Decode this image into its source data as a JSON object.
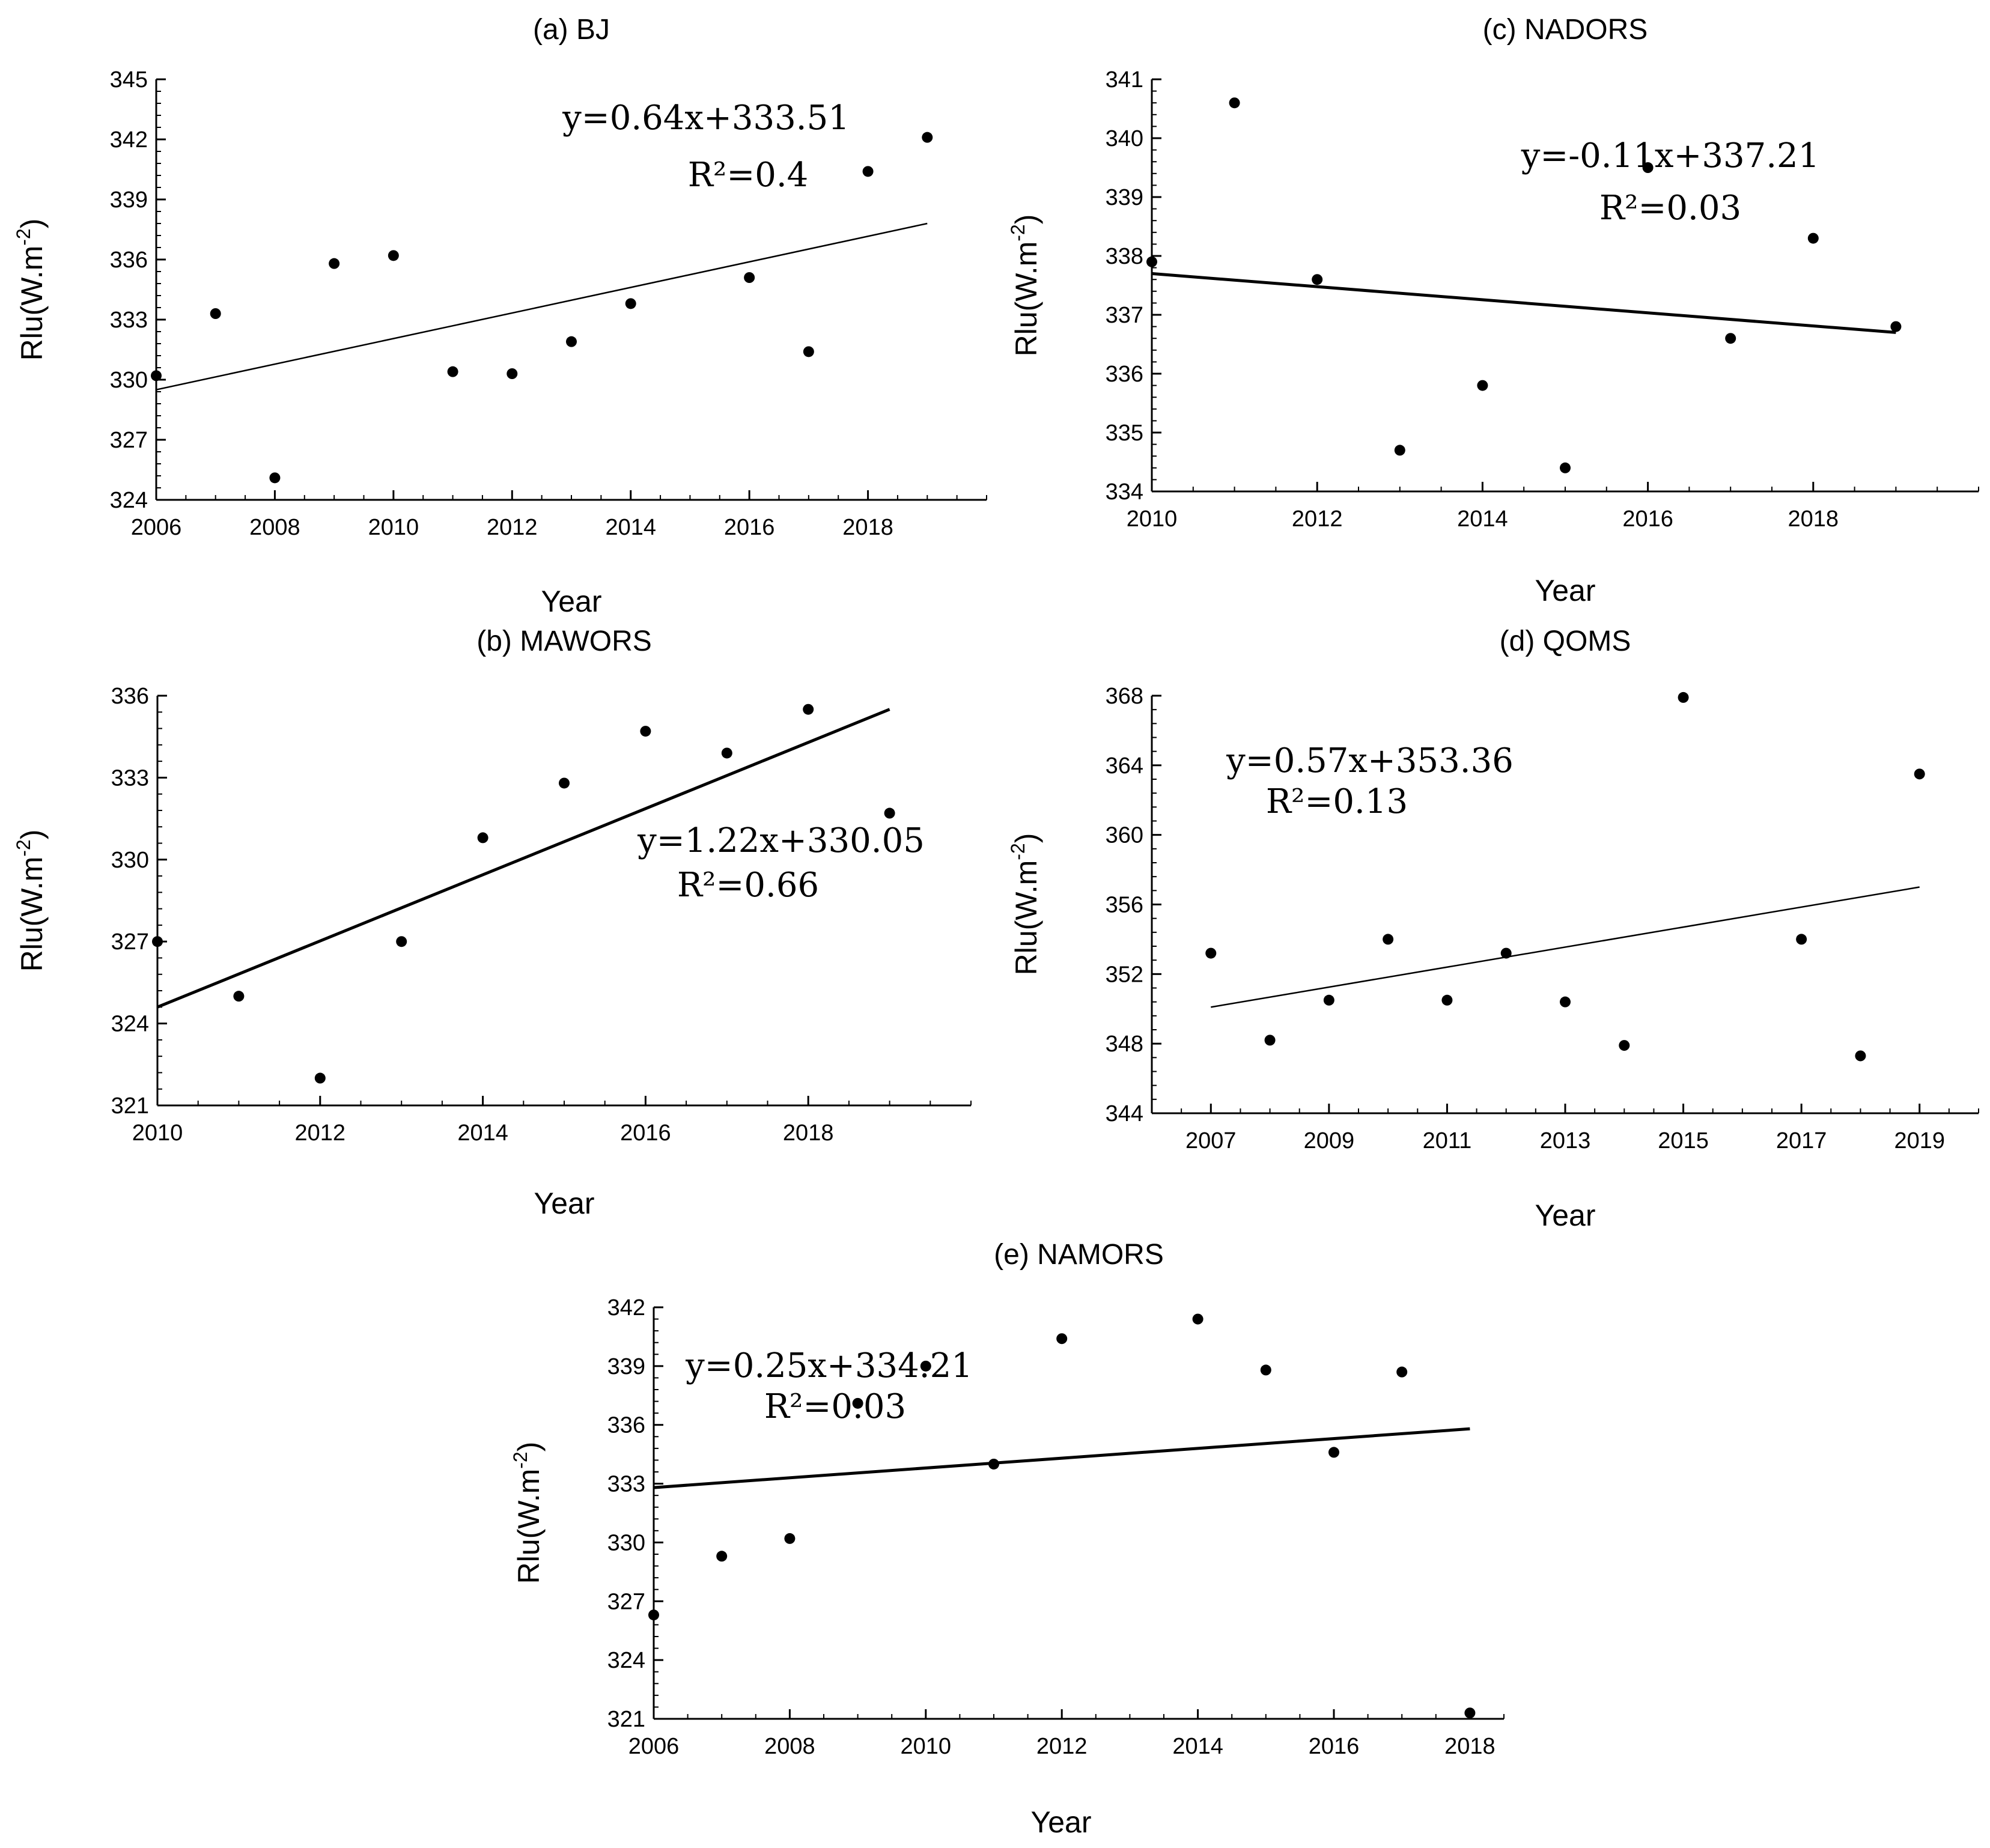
{
  "chart_data": [
    {
      "type": "scatter",
      "title": "(a) BJ",
      "xlabel": "Year",
      "ylabel": "Rlu(W.m",
      "ylabel_sup": "-2",
      "ylabel_close": ")",
      "xlim": [
        2006,
        2020
      ],
      "ylim": [
        324,
        345
      ],
      "xticks": [
        "2006",
        "2008",
        "2010",
        "2012",
        "2014",
        "2016",
        "2018"
      ],
      "yticks": [
        "324",
        "327",
        "330",
        "333",
        "336",
        "339",
        "342",
        "345"
      ],
      "x": [
        2006,
        2007,
        2008,
        2009,
        2010,
        2011,
        2012,
        2013,
        2014,
        2016,
        2017,
        2018,
        2019
      ],
      "y": [
        330.2,
        333.3,
        325.1,
        335.8,
        336.2,
        330.4,
        330.3,
        331.9,
        333.8,
        335.1,
        331.4,
        340.4,
        342.1
      ],
      "trend": {
        "x": [
          2006,
          2019
        ],
        "y": [
          329.5,
          337.8
        ]
      },
      "equation": "y=0.64x+333.51",
      "r2": "R²=0.4"
    },
    {
      "type": "scatter",
      "title": "(b) MAWORS",
      "xlabel": "Year",
      "ylabel": "Rlu(W.m",
      "ylabel_sup": "-2",
      "ylabel_close": ")",
      "xlim": [
        2010,
        2020
      ],
      "ylim": [
        321,
        336
      ],
      "xticks": [
        "2010",
        "2012",
        "2014",
        "2016",
        "2018"
      ],
      "yticks": [
        "321",
        "324",
        "327",
        "330",
        "333",
        "336"
      ],
      "x": [
        2010,
        2011,
        2012,
        2013,
        2014,
        2015,
        2016,
        2017,
        2018,
        2019
      ],
      "y": [
        327.0,
        325.0,
        322.0,
        327.0,
        330.8,
        332.8,
        334.7,
        333.9,
        335.5,
        331.7
      ],
      "trend": {
        "x": [
          2010,
          2019
        ],
        "y": [
          324.6,
          335.5
        ]
      },
      "equation": "y=1.22x+330.05",
      "r2": "R²=0.66"
    },
    {
      "type": "scatter",
      "title": "(c) NADORS",
      "xlabel": "Year",
      "ylabel": "Rlu(W.m",
      "ylabel_sup": "-2",
      "ylabel_close": ")",
      "xlim": [
        2010,
        2020
      ],
      "ylim": [
        334,
        341
      ],
      "xticks": [
        "2010",
        "2012",
        "2014",
        "2016",
        "2018"
      ],
      "yticks": [
        "334",
        "335",
        "336",
        "337",
        "338",
        "339",
        "340",
        "341"
      ],
      "x": [
        2010,
        2011,
        2012,
        2013,
        2014,
        2015,
        2016,
        2017,
        2018,
        2019
      ],
      "y": [
        337.9,
        340.6,
        337.6,
        334.7,
        335.8,
        334.4,
        339.5,
        336.6,
        338.3,
        336.8
      ],
      "trend": {
        "x": [
          2010,
          2019
        ],
        "y": [
          337.7,
          336.7
        ]
      },
      "equation": "y=-0.11x+337.21",
      "r2": "R²=0.03"
    },
    {
      "type": "scatter",
      "title": "(d) QOMS",
      "xlabel": "Year",
      "ylabel": "Rlu(W.m",
      "ylabel_sup": "-2",
      "ylabel_close": ")",
      "xlim": [
        2006,
        2020
      ],
      "ylim": [
        344,
        368
      ],
      "xticks": [
        "2007",
        "2009",
        "2011",
        "2013",
        "2015",
        "2017",
        "2019"
      ],
      "yticks": [
        "344",
        "348",
        "352",
        "356",
        "360",
        "364",
        "368"
      ],
      "x": [
        2007,
        2008,
        2009,
        2010,
        2011,
        2012,
        2013,
        2014,
        2015,
        2017,
        2018,
        2019
      ],
      "y": [
        353.2,
        348.2,
        350.5,
        354.0,
        350.5,
        353.2,
        350.4,
        347.9,
        367.9,
        354.0,
        347.3,
        363.5
      ],
      "trend": {
        "x": [
          2007,
          2019
        ],
        "y": [
          350.1,
          357.0
        ]
      },
      "equation": "y=0.57x+353.36",
      "r2": "R²=0.13"
    },
    {
      "type": "scatter",
      "title": "(e) NAMORS",
      "xlabel": "Year",
      "ylabel": "Rlu(W.m",
      "ylabel_sup": "-2",
      "ylabel_close": ")",
      "xlim": [
        2006,
        2018.5
      ],
      "ylim": [
        321,
        342
      ],
      "xticks": [
        "2006",
        "2008",
        "2010",
        "2012",
        "2014",
        "2016",
        "2018"
      ],
      "yticks": [
        "321",
        "324",
        "327",
        "330",
        "333",
        "336",
        "339",
        "342"
      ],
      "x": [
        2006,
        2007,
        2008,
        2009,
        2010,
        2011,
        2012,
        2014,
        2015,
        2016,
        2017,
        2018
      ],
      "y": [
        326.3,
        329.3,
        330.2,
        337.1,
        339.0,
        334.0,
        340.4,
        341.4,
        338.8,
        334.6,
        338.7,
        321.3
      ],
      "trend": {
        "x": [
          2006,
          2018
        ],
        "y": [
          332.8,
          335.8
        ]
      },
      "equation": "y=0.25x+334.21",
      "r2": "R²=0.03"
    }
  ]
}
